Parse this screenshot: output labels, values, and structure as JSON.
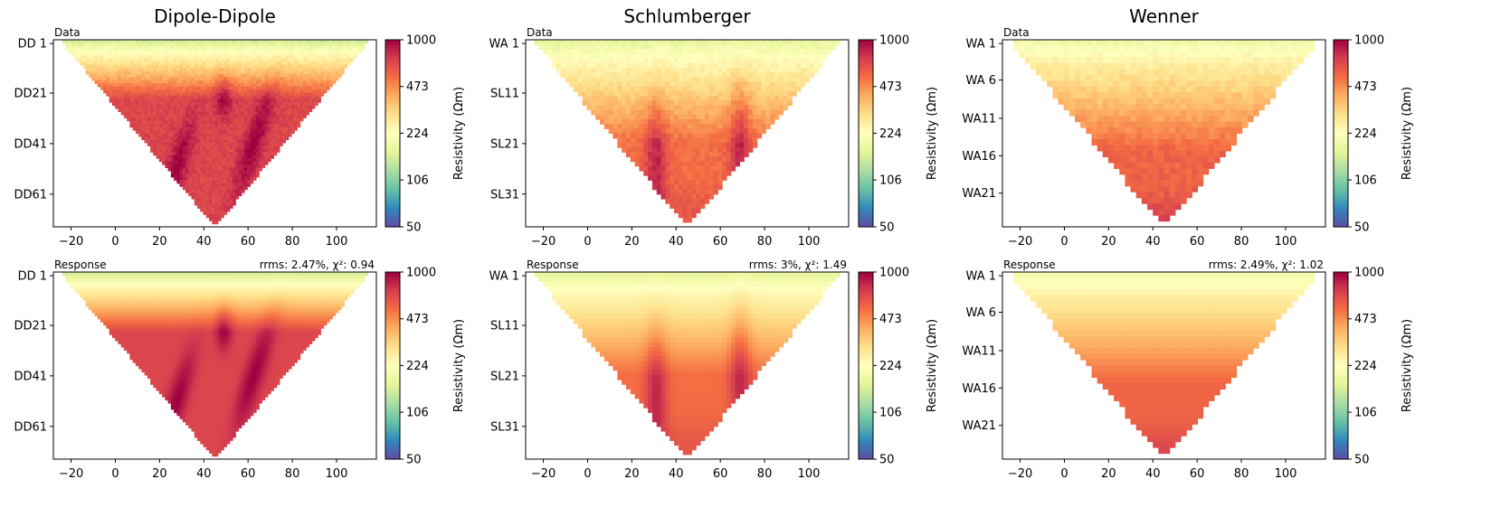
{
  "colorbar": {
    "label": "Resistivity (Ωm)",
    "ticks": [
      "1000",
      "473",
      "224",
      "106",
      "50"
    ],
    "colormap": "Spectral_r",
    "colors": [
      "#5e4fa2",
      "#3288bd",
      "#66c2a5",
      "#abdda4",
      "#e6f598",
      "#ffffbf",
      "#fee08b",
      "#fdae61",
      "#f46d43",
      "#d53e4f",
      "#9e0142"
    ]
  },
  "chart_data": [
    {
      "type": "heatmap",
      "panel": "data",
      "title": "Dipole-Dipole",
      "panel_label": "Data",
      "stats": "",
      "x_ticks": [
        "−20",
        "0",
        "20",
        "40",
        "60",
        "80",
        "100"
      ],
      "xlim": [
        -28,
        118
      ],
      "y_ticks": [
        "DD 1",
        "DD21",
        "DD41",
        "DD61"
      ],
      "apex_x": 45,
      "range": [
        50,
        1000
      ],
      "colorbar_ticks": [
        1000,
        473,
        224,
        106,
        50
      ]
    },
    {
      "type": "heatmap",
      "panel": "response",
      "title": "Dipole-Dipole",
      "panel_label": "Response",
      "stats": "rrms: 2.47%, χ²: 0.94",
      "x_ticks": [
        "−20",
        "0",
        "20",
        "40",
        "60",
        "80",
        "100"
      ],
      "xlim": [
        -28,
        118
      ],
      "y_ticks": [
        "DD 1",
        "DD21",
        "DD41",
        "DD61"
      ],
      "apex_x": 45,
      "range": [
        50,
        1000
      ],
      "colorbar_ticks": [
        1000,
        473,
        224,
        106,
        50
      ]
    },
    {
      "type": "heatmap",
      "panel": "data",
      "title": "Schlumberger",
      "panel_label": "Data",
      "stats": "",
      "x_ticks": [
        "−20",
        "0",
        "20",
        "40",
        "60",
        "80",
        "100"
      ],
      "xlim": [
        -28,
        118
      ],
      "y_ticks": [
        "WA 1",
        "SL11",
        "SL21",
        "SL31"
      ],
      "apex_x": 45,
      "range": [
        50,
        1000
      ],
      "colorbar_ticks": [
        1000,
        473,
        224,
        106,
        50
      ]
    },
    {
      "type": "heatmap",
      "panel": "response",
      "title": "Schlumberger",
      "panel_label": "Response",
      "stats": "rrms: 3%, χ²: 1.49",
      "x_ticks": [
        "−20",
        "0",
        "20",
        "40",
        "60",
        "80",
        "100"
      ],
      "xlim": [
        -28,
        118
      ],
      "y_ticks": [
        "WA 1",
        "SL11",
        "SL21",
        "SL31"
      ],
      "apex_x": 45,
      "range": [
        50,
        1000
      ],
      "colorbar_ticks": [
        1000,
        473,
        224,
        106,
        50
      ]
    },
    {
      "type": "heatmap",
      "panel": "data",
      "title": "Wenner",
      "panel_label": "Data",
      "stats": "",
      "x_ticks": [
        "−20",
        "0",
        "20",
        "40",
        "60",
        "80",
        "100"
      ],
      "xlim": [
        -28,
        118
      ],
      "y_ticks": [
        "WA 1",
        "WA 6",
        "WA11",
        "WA16",
        "WA21"
      ],
      "apex_x": 45,
      "range": [
        50,
        1000
      ],
      "colorbar_ticks": [
        1000,
        473,
        224,
        106,
        50
      ]
    },
    {
      "type": "heatmap",
      "panel": "response",
      "title": "Wenner",
      "panel_label": "Response",
      "stats": "rrms: 2.49%, χ²: 1.02",
      "x_ticks": [
        "−20",
        "0",
        "20",
        "40",
        "60",
        "80",
        "100"
      ],
      "xlim": [
        -28,
        118
      ],
      "y_ticks": [
        "WA 1",
        "WA 6",
        "WA11",
        "WA16",
        "WA21"
      ],
      "apex_x": 45,
      "range": [
        50,
        1000
      ],
      "colorbar_ticks": [
        1000,
        473,
        224,
        106,
        50
      ]
    }
  ]
}
